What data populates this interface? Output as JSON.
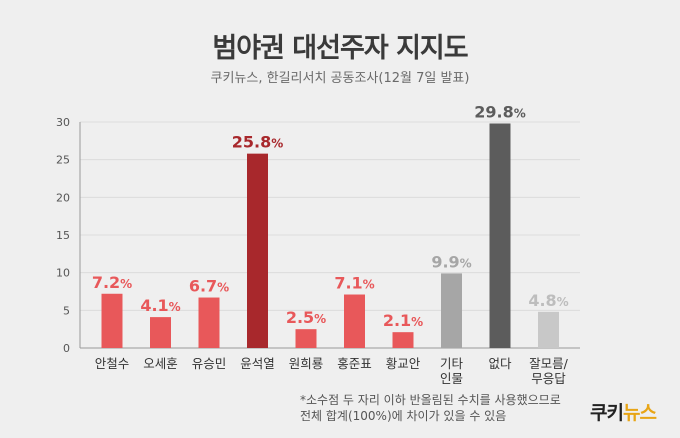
{
  "header": {
    "title": "범야권 대선주자 지지도",
    "subtitle": "쿠키뉴스, 한길리서치 공동조사(12월 7일 발표)"
  },
  "footnote": {
    "line1": "*소수점 두 자리 이하 반올림된 수치를 사용했으므로",
    "line2": "전체 합계(100%)에 차이가 있을 수 있음"
  },
  "logo": {
    "part1": "쿠키",
    "part2": "뉴스"
  },
  "colors": {
    "candidate": "#e8585a",
    "highlight": "#a8282c",
    "other": "#a6a6a6",
    "none": "#5c5c5c",
    "unknown": "#c8c8c8"
  },
  "chart_data": {
    "type": "bar",
    "title": "범야권 대선주자 지지도",
    "ylim": [
      0,
      30
    ],
    "yticks": [
      0,
      5,
      10,
      15,
      20,
      25,
      30
    ],
    "grid": true,
    "categories": [
      [
        "안철수"
      ],
      [
        "오세훈"
      ],
      [
        "유승민"
      ],
      [
        "윤석열"
      ],
      [
        "원희룡"
      ],
      [
        "홍준표"
      ],
      [
        "황교안"
      ],
      [
        "기타",
        "인물"
      ],
      [
        "없다"
      ],
      [
        "잘모름/",
        "무응답"
      ]
    ],
    "values": [
      7.2,
      4.1,
      6.7,
      25.8,
      2.5,
      7.1,
      2.1,
      9.9,
      29.8,
      4.8
    ],
    "value_labels": [
      "7.2%",
      "4.1%",
      "6.7%",
      "25.8%",
      "2.5%",
      "7.1%",
      "2.1%",
      "9.9%",
      "29.8%",
      "4.8%"
    ],
    "bar_colors": [
      "candidate",
      "candidate",
      "candidate",
      "highlight",
      "candidate",
      "candidate",
      "candidate",
      "other",
      "none",
      "unknown"
    ]
  }
}
